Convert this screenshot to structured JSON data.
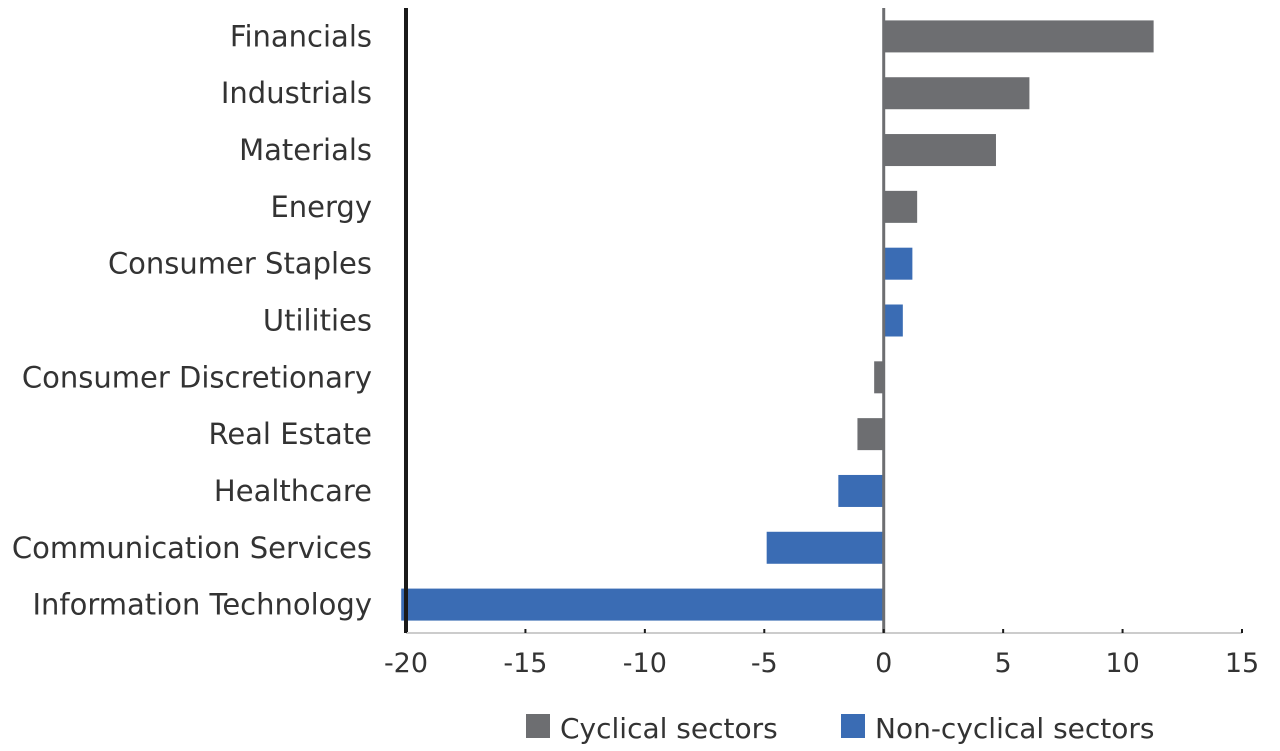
{
  "chart_data": {
    "type": "bar",
    "orientation": "horizontal",
    "categories": [
      "Financials",
      "Industrials",
      "Materials",
      "Energy",
      "Consumer Staples",
      "Utilities",
      "Consumer Discretionary",
      "Real Estate",
      "Healthcare",
      "Communication Services",
      "Information Technology"
    ],
    "values": [
      11.3,
      6.1,
      4.7,
      1.4,
      1.2,
      0.8,
      -0.4,
      -1.1,
      -1.9,
      -4.9,
      -20.2
    ],
    "groups": [
      "cyclical",
      "cyclical",
      "cyclical",
      "cyclical",
      "non-cyclical",
      "non-cyclical",
      "cyclical",
      "cyclical",
      "non-cyclical",
      "non-cyclical",
      "non-cyclical"
    ],
    "series": [
      {
        "key": "cyclical",
        "name": "Cyclical sectors",
        "color": "#6d6e71"
      },
      {
        "key": "non-cyclical",
        "name": "Non-cyclical sectors",
        "color": "#3a6cb4"
      }
    ],
    "xlim": [
      -20,
      15
    ],
    "xticks": [
      -20,
      -15,
      -10,
      -5,
      0,
      5,
      10,
      15
    ],
    "xtick_labels": [
      "-20",
      "-15",
      "-10",
      "-5",
      "0",
      "5",
      "10",
      "15"
    ],
    "title": "",
    "xlabel": "",
    "ylabel": "",
    "grid": false,
    "legend_position": "bottom"
  }
}
